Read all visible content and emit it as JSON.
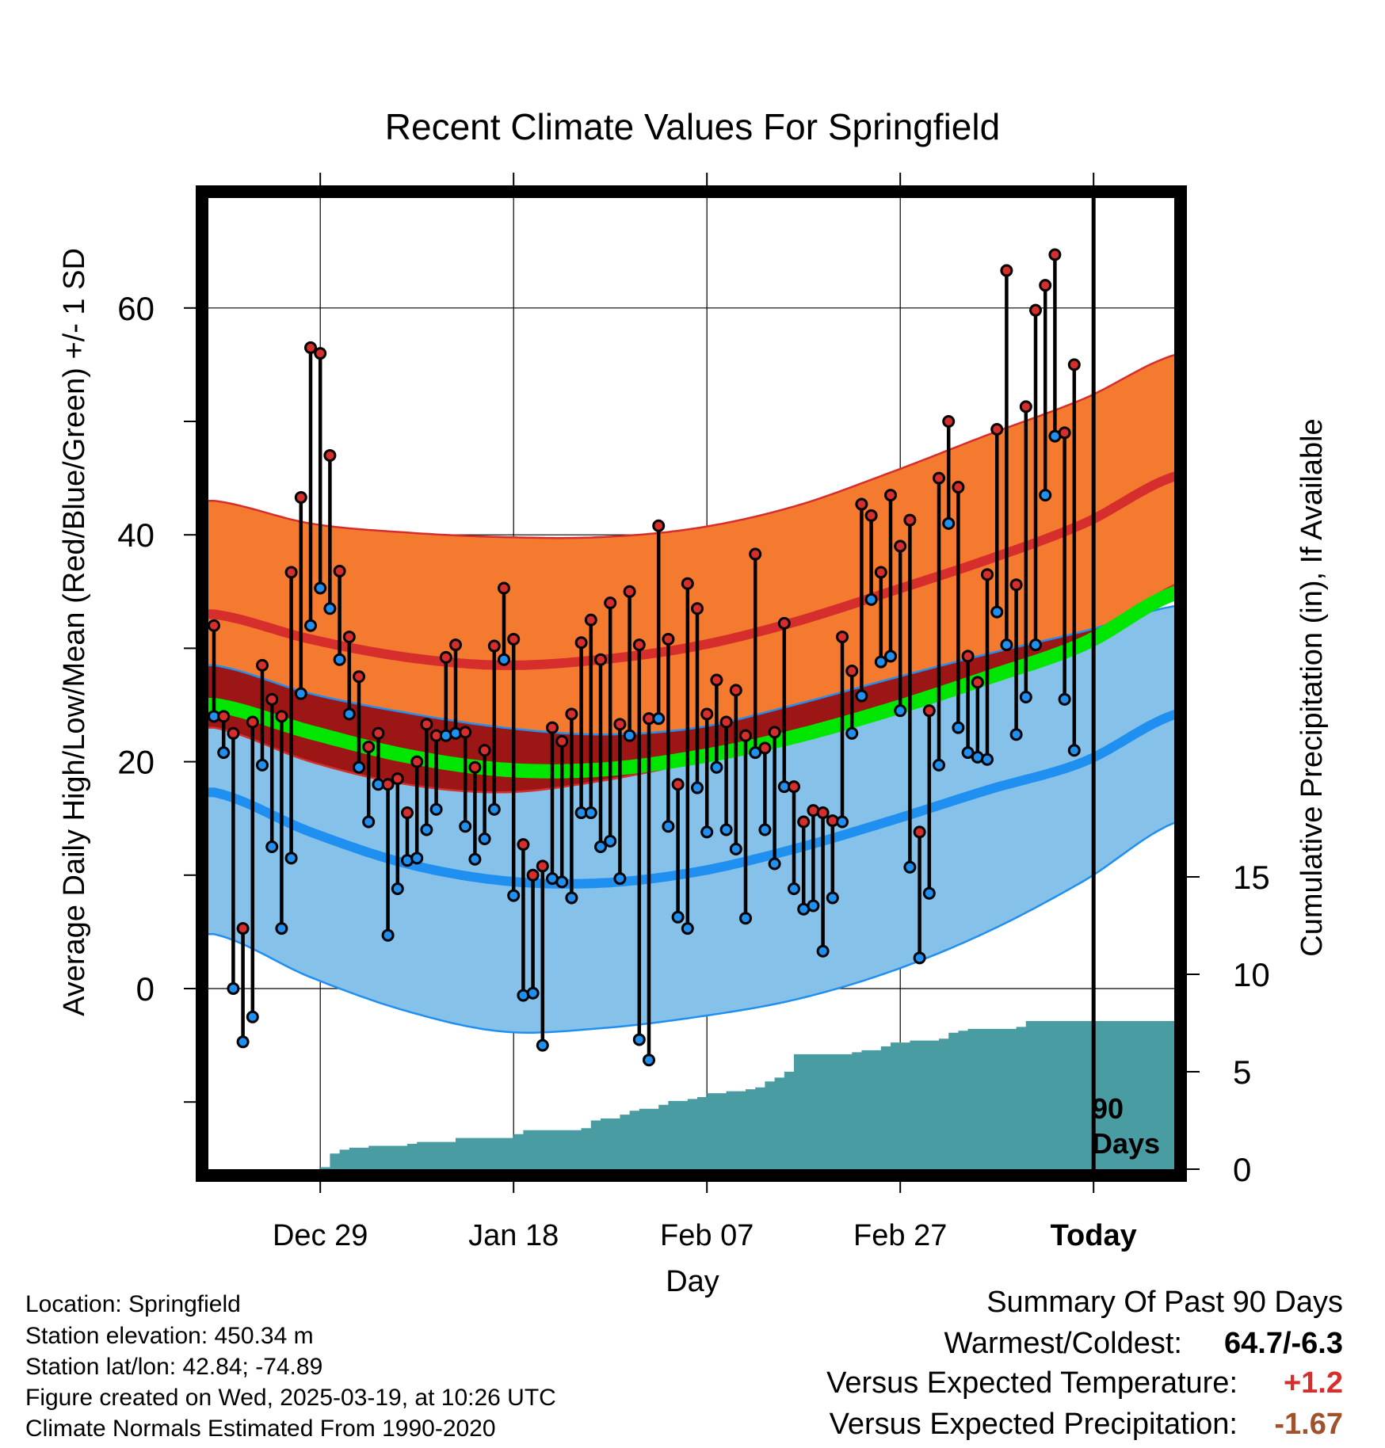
{
  "chart_data": {
    "type": "line",
    "title": "Recent Climate Values For Springfield",
    "ylabel": "Average Daily High/Low/Mean (Red/Blue/Green) +/- 1 SD",
    "y2label": "Cumulative Precipitation (in), If Available",
    "xlabel": "Day",
    "ylim": [
      -16,
      70
    ],
    "y2lim": [
      0,
      17
    ],
    "y_ticks": [
      0,
      20,
      40,
      60
    ],
    "y2_ticks": [
      0,
      5,
      10,
      15
    ],
    "x_tick_labels": [
      {
        "day": 11,
        "label": "Dec 29"
      },
      {
        "day": 31,
        "label": "Jan 18"
      },
      {
        "day": 51,
        "label": "Feb 07"
      },
      {
        "day": 71,
        "label": "Feb 27"
      },
      {
        "day": 91,
        "label": "Today"
      }
    ],
    "today_marker": {
      "day": 91,
      "label": "90 Days"
    },
    "normals": {
      "days": [
        0,
        10,
        20,
        30,
        40,
        50,
        60,
        70,
        80,
        90,
        100
      ],
      "high_mean": [
        33.0,
        30.8,
        29.2,
        28.5,
        29.0,
        30.2,
        32.3,
        35.0,
        37.8,
        41.0,
        45.3
      ],
      "high_upper": [
        43.0,
        41.0,
        40.2,
        39.8,
        39.8,
        40.6,
        42.5,
        45.5,
        48.8,
        52.0,
        56.0
      ],
      "high_lower": [
        23.0,
        20.0,
        18.0,
        17.3,
        18.3,
        20.0,
        22.0,
        24.5,
        27.0,
        30.0,
        35.8
      ],
      "low_mean": [
        17.3,
        13.8,
        11.0,
        9.5,
        9.3,
        10.3,
        12.3,
        14.8,
        17.5,
        20.0,
        24.3
      ],
      "low_upper": [
        28.5,
        26.0,
        24.3,
        23.0,
        22.4,
        23.0,
        25.0,
        27.3,
        29.5,
        31.5,
        33.8
      ],
      "low_lower": [
        4.8,
        1.0,
        -2.0,
        -3.8,
        -3.5,
        -2.5,
        -1.0,
        1.5,
        5.0,
        9.5,
        14.8
      ],
      "mean": [
        25.0,
        22.6,
        20.5,
        19.3,
        19.3,
        20.4,
        22.2,
        24.6,
        27.4,
        30.4,
        35.0
      ]
    },
    "observed": [
      {
        "day": 0,
        "high": 32.0,
        "low": 24.0
      },
      {
        "day": 1,
        "high": 24.0,
        "low": 20.8
      },
      {
        "day": 2,
        "high": 22.5,
        "low": 0.0
      },
      {
        "day": 3,
        "high": 5.3,
        "low": -4.7
      },
      {
        "day": 4,
        "high": 23.5,
        "low": -2.5
      },
      {
        "day": 5,
        "high": 28.5,
        "low": 19.7
      },
      {
        "day": 6,
        "high": 25.5,
        "low": 12.5
      },
      {
        "day": 7,
        "high": 24.0,
        "low": 5.3
      },
      {
        "day": 8,
        "high": 36.7,
        "low": 11.5
      },
      {
        "day": 9,
        "high": 43.3,
        "low": 26.0
      },
      {
        "day": 10,
        "high": 56.5,
        "low": 32.0
      },
      {
        "day": 11,
        "high": 56.0,
        "low": 35.3
      },
      {
        "day": 12,
        "high": 47.0,
        "low": 33.5
      },
      {
        "day": 13,
        "high": 36.8,
        "low": 29.0
      },
      {
        "day": 14,
        "high": 31.0,
        "low": 24.2
      },
      {
        "day": 15,
        "high": 27.5,
        "low": 19.5
      },
      {
        "day": 16,
        "high": 21.3,
        "low": 14.7
      },
      {
        "day": 17,
        "high": 22.5,
        "low": 18.0
      },
      {
        "day": 18,
        "high": 18.0,
        "low": 4.7
      },
      {
        "day": 19,
        "high": 18.5,
        "low": 8.8
      },
      {
        "day": 20,
        "high": 15.5,
        "low": 11.3
      },
      {
        "day": 21,
        "high": 20.0,
        "low": 11.5
      },
      {
        "day": 22,
        "high": 23.3,
        "low": 14.0
      },
      {
        "day": 23,
        "high": 22.3,
        "low": 15.8
      },
      {
        "day": 24,
        "high": 29.2,
        "low": 22.3
      },
      {
        "day": 25,
        "high": 30.3,
        "low": 22.5
      },
      {
        "day": 26,
        "high": 22.6,
        "low": 14.3
      },
      {
        "day": 27,
        "high": 19.5,
        "low": 11.4
      },
      {
        "day": 28,
        "high": 21.0,
        "low": 13.2
      },
      {
        "day": 29,
        "high": 30.2,
        "low": 15.8
      },
      {
        "day": 30,
        "high": 35.3,
        "low": 29.0
      },
      {
        "day": 31,
        "high": 30.8,
        "low": 8.2
      },
      {
        "day": 32,
        "high": 12.7,
        "low": -0.6
      },
      {
        "day": 33,
        "high": 10.0,
        "low": -0.4
      },
      {
        "day": 34,
        "high": 10.8,
        "low": -5.0
      },
      {
        "day": 35,
        "high": 23.0,
        "low": 9.7
      },
      {
        "day": 36,
        "high": 21.8,
        "low": 9.4
      },
      {
        "day": 37,
        "high": 24.2,
        "low": 8.0
      },
      {
        "day": 38,
        "high": 30.5,
        "low": 15.5
      },
      {
        "day": 39,
        "high": 32.5,
        "low": 15.5
      },
      {
        "day": 40,
        "high": 29.0,
        "low": 12.5
      },
      {
        "day": 41,
        "high": 34.0,
        "low": 13.0
      },
      {
        "day": 42,
        "high": 23.3,
        "low": 9.7
      },
      {
        "day": 43,
        "high": 35.0,
        "low": 22.3
      },
      {
        "day": 44,
        "high": 30.3,
        "low": -4.5
      },
      {
        "day": 45,
        "high": 23.8,
        "low": -6.3
      },
      {
        "day": 46,
        "high": 40.8,
        "low": 23.8
      },
      {
        "day": 47,
        "high": 30.8,
        "low": 14.3
      },
      {
        "day": 48,
        "high": 18.0,
        "low": 6.3
      },
      {
        "day": 49,
        "high": 35.7,
        "low": 5.3
      },
      {
        "day": 50,
        "high": 33.5,
        "low": 17.7
      },
      {
        "day": 51,
        "high": 24.2,
        "low": 13.8
      },
      {
        "day": 52,
        "high": 27.2,
        "low": 19.5
      },
      {
        "day": 53,
        "high": 23.5,
        "low": 14.0
      },
      {
        "day": 54,
        "high": 26.3,
        "low": 12.3
      },
      {
        "day": 55,
        "high": 22.3,
        "low": 6.2
      },
      {
        "day": 56,
        "high": 38.3,
        "low": 20.8
      },
      {
        "day": 57,
        "high": 21.2,
        "low": 14.0
      },
      {
        "day": 58,
        "high": 22.6,
        "low": 11.0
      },
      {
        "day": 59,
        "high": 32.2,
        "low": 17.8
      },
      {
        "day": 60,
        "high": 17.8,
        "low": 8.8
      },
      {
        "day": 61,
        "high": 14.7,
        "low": 7.0
      },
      {
        "day": 62,
        "high": 15.7,
        "low": 7.3
      },
      {
        "day": 63,
        "high": 15.5,
        "low": 3.3
      },
      {
        "day": 64,
        "high": 14.8,
        "low": 8.0
      },
      {
        "day": 65,
        "high": 31.0,
        "low": 14.7
      },
      {
        "day": 66,
        "high": 28.0,
        "low": 22.5
      },
      {
        "day": 67,
        "high": 42.7,
        "low": 25.8
      },
      {
        "day": 68,
        "high": 41.7,
        "low": 34.3
      },
      {
        "day": 69,
        "high": 36.7,
        "low": 28.8
      },
      {
        "day": 70,
        "high": 43.5,
        "low": 29.3
      },
      {
        "day": 71,
        "high": 39.0,
        "low": 24.5
      },
      {
        "day": 72,
        "high": 41.3,
        "low": 10.7
      },
      {
        "day": 73,
        "high": 13.8,
        "low": 2.7
      },
      {
        "day": 74,
        "high": 24.5,
        "low": 8.4
      },
      {
        "day": 75,
        "high": 45.0,
        "low": 19.7
      },
      {
        "day": 76,
        "high": 50.0,
        "low": 41.0
      },
      {
        "day": 77,
        "high": 44.2,
        "low": 23.0
      },
      {
        "day": 78,
        "high": 29.3,
        "low": 20.8
      },
      {
        "day": 79,
        "high": 27.0,
        "low": 20.4
      },
      {
        "day": 80,
        "high": 36.5,
        "low": 20.2
      },
      {
        "day": 81,
        "high": 49.3,
        "low": 33.2
      },
      {
        "day": 82,
        "high": 63.3,
        "low": 30.3
      },
      {
        "day": 83,
        "high": 35.6,
        "low": 22.4
      },
      {
        "day": 84,
        "high": 51.3,
        "low": 25.7
      },
      {
        "day": 85,
        "high": 59.8,
        "low": 30.3
      },
      {
        "day": 86,
        "high": 62.0,
        "low": 43.5
      },
      {
        "day": 87,
        "high": 64.7,
        "low": 48.7
      },
      {
        "day": 88,
        "high": 49.0,
        "low": 25.5
      },
      {
        "day": 89,
        "high": 55.0,
        "low": 21.0
      }
    ],
    "cumulative_precip": {
      "days": [
        0,
        10,
        11,
        12,
        13,
        14,
        16,
        20,
        21,
        25,
        31,
        32,
        38,
        39,
        40,
        42,
        43,
        44,
        46,
        47,
        49,
        50,
        51,
        53,
        55,
        56,
        57,
        58,
        59,
        60,
        66,
        67,
        69,
        70,
        72,
        75,
        76,
        77,
        78,
        83,
        84,
        89
      ],
      "values": [
        0.0,
        0.0,
        0.1,
        0.8,
        1.0,
        1.1,
        1.2,
        1.3,
        1.4,
        1.6,
        1.8,
        2.0,
        2.1,
        2.5,
        2.6,
        2.8,
        3.0,
        3.1,
        3.3,
        3.5,
        3.6,
        3.7,
        3.9,
        4.0,
        4.1,
        4.2,
        4.5,
        4.7,
        5.0,
        5.9,
        6.0,
        6.1,
        6.3,
        6.5,
        6.6,
        6.7,
        7.0,
        7.1,
        7.2,
        7.3,
        7.6,
        7.6
      ]
    },
    "colors": {
      "high_band": "#f47a30",
      "high_mean": "#d62d2d",
      "high_edge": "#d62d2d",
      "low_band": "#85c1e9",
      "low_mean": "#1f8ff0",
      "low_edge": "#1f8ff0",
      "overlap": "#9c1616",
      "mean": "#00e600",
      "precip": "#4a9ca3",
      "high_dot": "#d62d2d",
      "low_dot": "#1f8ff0"
    }
  },
  "info": {
    "location": "Location: Springfield",
    "elevation": "Station elevation: 450.34 m",
    "latlon": "Station lat/lon: 42.84; -74.89",
    "created": "Figure created on Wed, 2025-03-19, at 10:26 UTC",
    "normals": "Climate Normals Estimated From 1990-2020"
  },
  "summary": {
    "title": "Summary Of Past 90 Days",
    "warm_label": "Warmest/Coldest:",
    "warm_value": "64.7/-6.3",
    "temp_label": "Versus Expected Temperature:",
    "temp_value": "+1.2",
    "temp_color": "#d62d2d",
    "precip_label": "Versus Expected Precipitation:",
    "precip_value": "-1.67",
    "precip_color": "#a0522d"
  },
  "days_label_line1": "90",
  "days_label_line2": "Days"
}
